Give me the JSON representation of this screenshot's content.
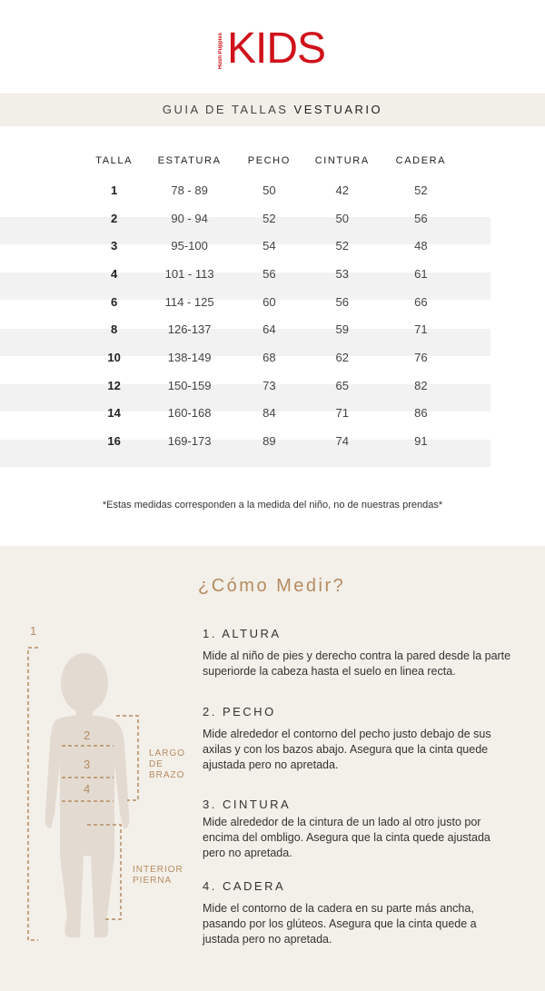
{
  "logo": {
    "brand": "Hush Puppies",
    "text": "KIDS"
  },
  "band": {
    "title_light": "GUIA DE TALLAS ",
    "title_bold": "VESTUARIO"
  },
  "table": {
    "headers": [
      "TALLA",
      "ESTATURA",
      "PECHO",
      "CINTURA",
      "CADERA"
    ],
    "rows": [
      [
        "1",
        "78 - 89",
        "50",
        "42",
        "52"
      ],
      [
        "2",
        "90 - 94",
        "52",
        "50",
        "56"
      ],
      [
        "3",
        "95-100",
        "54",
        "52",
        "48"
      ],
      [
        "4",
        "101 - 113",
        "56",
        "53",
        "61"
      ],
      [
        "6",
        "114 - 125",
        "60",
        "56",
        "66"
      ],
      [
        "8",
        "126-137",
        "64",
        "59",
        "71"
      ],
      [
        "10",
        "138-149",
        "68",
        "62",
        "76"
      ],
      [
        "12",
        "150-159",
        "73",
        "65",
        "82"
      ],
      [
        "14",
        "160-168",
        "84",
        "71",
        "86"
      ],
      [
        "16",
        "169-173",
        "89",
        "74",
        "91"
      ]
    ]
  },
  "note": "*Estas medidas corresponden a la medida del niño, no de nuestras prendas*",
  "how": {
    "title": "¿Cómo Medir?",
    "figure": {
      "n1": "1",
      "n2": "2",
      "n3": "3",
      "n4": "4",
      "arm": [
        "LARGO",
        "DE",
        "BRAZO"
      ],
      "leg": [
        "INTERIOR",
        "PIERNA"
      ]
    },
    "sections": [
      {
        "title": "1. ALTURA",
        "text": "Mide al niño de pies y derecho contra la pared desde la parte superiorde la cabeza hasta el suelo en linea recta."
      },
      {
        "title": "2. PECHO",
        "text": "Mide alrededor el contorno del pecho  justo debajo de sus axilas y con los bazos abajo. Asegura que la cinta quede ajustada pero no apretada."
      },
      {
        "title": "3. CINTURA",
        "text": "Mide alrededor de la cintura de un lado al otro justo por encima del ombligo. Asegura que la cinta quede ajustada pero no apretada."
      },
      {
        "title": "4. CADERA",
        "text": "Mide el contorno de la cadera en su parte más ancha, pasando por los glúteos. Asegura que la cinta quede a justada pero no apretada."
      }
    ]
  },
  "colors": {
    "brand": "#d0121b",
    "accent": "#b58c5f",
    "band": "#f2eee8",
    "section_bg": "#f3efe9",
    "figure": "#e3dbd1"
  }
}
